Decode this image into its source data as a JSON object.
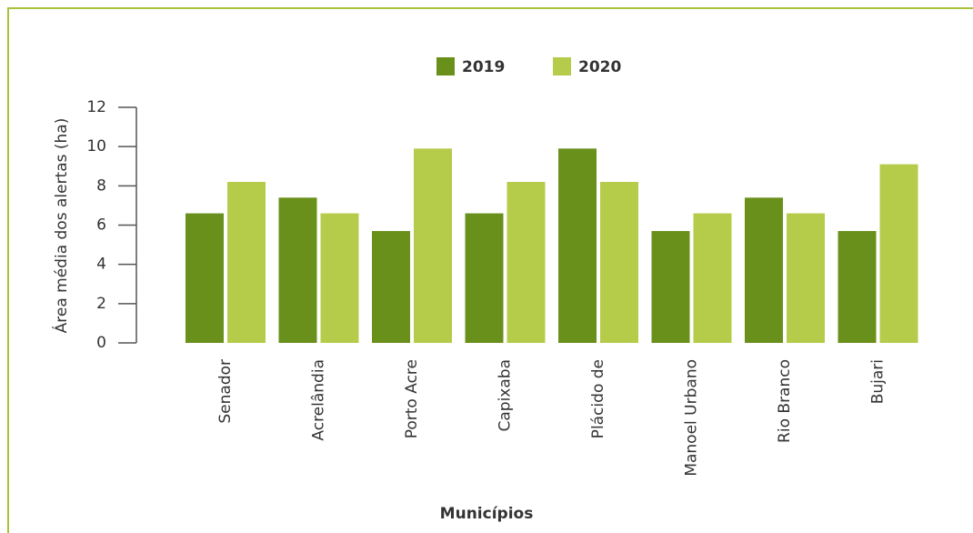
{
  "chart_data": {
    "type": "bar",
    "xlabel": "Municípios",
    "ylabel": "Área média dos alertas (ha)",
    "categories": [
      "Senador",
      "Acrelândia",
      "Porto Acre",
      "Capixaba",
      "Plácido de",
      "Manoel Urbano",
      "Rio Branco",
      "Bujari"
    ],
    "series": [
      {
        "name": "2019",
        "color": "#6a901c",
        "values": [
          6.6,
          7.4,
          5.7,
          6.6,
          9.9,
          5.7,
          7.4,
          5.7
        ]
      },
      {
        "name": "2020",
        "color": "#b5cc4a",
        "values": [
          8.2,
          6.6,
          9.9,
          8.2,
          8.2,
          6.6,
          6.6,
          9.1
        ]
      }
    ],
    "ylim": [
      0,
      12
    ],
    "yticks": [
      0,
      2,
      4,
      6,
      8,
      10,
      12
    ],
    "legend": "top"
  }
}
